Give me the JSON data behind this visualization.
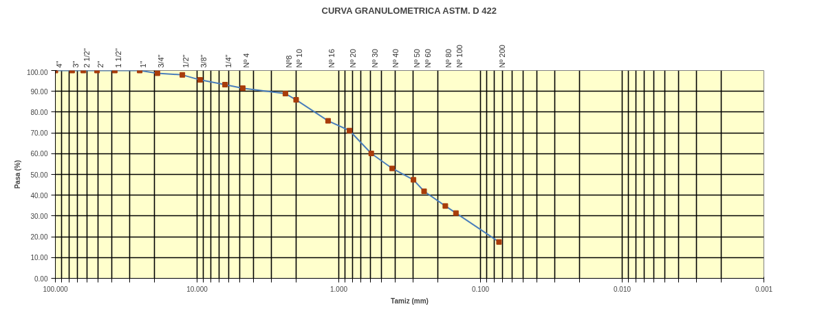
{
  "chart_data": {
    "type": "line",
    "title": "CURVA GRANULOMETRICA ASTM. D 422",
    "xlabel": "Tamiz (mm)",
    "ylabel": "Pasa (%)",
    "x": [
      100,
      76.2,
      63.5,
      50.8,
      38.1,
      25.4,
      19.05,
      12.7,
      9.525,
      6.35,
      4.76,
      2.38,
      2.0,
      1.19,
      0.84,
      0.59,
      0.42,
      0.297,
      0.25,
      0.177,
      0.149,
      0.074
    ],
    "series": [
      {
        "color": "#4a7ebb",
        "colors": [
          "#a83c0a",
          "#a83c0a",
          "#a83c0a",
          "#a83c0a",
          "#a83c0a",
          "#a83c0a",
          "#a83c0a",
          "#a83c0a",
          "#a83c0a",
          "#a83c0a",
          "#a83c0a",
          "#a83c0a",
          "#a83c0a",
          "#a83c0a",
          "#a83c0a",
          "#a83c0a",
          "#a83c0a",
          "#a83c0a",
          "#a83c0a",
          "#a83c0a",
          "#a83c0a",
          "#a83c0a"
        ],
        "values": [
          100,
          100,
          100,
          100,
          100,
          100,
          98.7,
          97.9,
          95.5,
          93.2,
          91.5,
          88.9,
          85.9,
          75.8,
          71.1,
          60.1,
          52.9,
          47.4,
          41.9,
          34.8,
          31.4,
          17.5
        ]
      }
    ],
    "marker": "square",
    "line_style": "solid",
    "log": "x",
    "grid": true,
    "xlim": [
      100,
      0.001
    ],
    "ylim": [
      0,
      100
    ],
    "xticks": [
      {
        "value": 100,
        "label": "100.000"
      },
      {
        "value": 90,
        "label": null
      },
      {
        "value": 80,
        "label": null
      },
      {
        "value": 70,
        "label": null
      },
      {
        "value": 60,
        "label": null
      },
      {
        "value": 50,
        "label": null
      },
      {
        "value": 40,
        "label": null
      },
      {
        "value": 30,
        "label": null
      },
      {
        "value": 20,
        "label": null
      },
      {
        "value": 10,
        "label": "10.000"
      },
      {
        "value": 9,
        "label": null
      },
      {
        "value": 8,
        "label": null
      },
      {
        "value": 7,
        "label": null
      },
      {
        "value": 6,
        "label": null
      },
      {
        "value": 5,
        "label": null
      },
      {
        "value": 4,
        "label": null
      },
      {
        "value": 3,
        "label": null
      },
      {
        "value": 2,
        "label": null
      },
      {
        "value": 1,
        "label": "1.000"
      },
      {
        "value": 0.9,
        "label": null
      },
      {
        "value": 0.8,
        "label": null
      },
      {
        "value": 0.7,
        "label": null
      },
      {
        "value": 0.6,
        "label": null
      },
      {
        "value": 0.5,
        "label": null
      },
      {
        "value": 0.4,
        "label": null
      },
      {
        "value": 0.3,
        "label": null
      },
      {
        "value": 0.2,
        "label": null
      },
      {
        "value": 0.1,
        "label": "0.100"
      },
      {
        "value": 0.09,
        "label": null
      },
      {
        "value": 0.08,
        "label": null
      },
      {
        "value": 0.07,
        "label": null
      },
      {
        "value": 0.06,
        "label": null
      },
      {
        "value": 0.05,
        "label": null
      },
      {
        "value": 0.04,
        "label": null
      },
      {
        "value": 0.03,
        "label": null
      },
      {
        "value": 0.02,
        "label": null
      },
      {
        "value": 0.01,
        "label": "0.010"
      },
      {
        "value": 0.009,
        "label": null
      },
      {
        "value": 0.008,
        "label": null
      },
      {
        "value": 0.007,
        "label": null
      },
      {
        "value": 0.006,
        "label": null
      },
      {
        "value": 0.005,
        "label": null
      },
      {
        "value": 0.004,
        "label": null
      },
      {
        "value": 0.003,
        "label": null
      },
      {
        "value": 0.002,
        "label": null
      },
      {
        "value": 0.001,
        "label": "0.001"
      }
    ],
    "yticks": [
      {
        "value": 0,
        "label": "0.00"
      },
      {
        "value": 10,
        "label": "10.00"
      },
      {
        "value": 20,
        "label": "20.00"
      },
      {
        "value": 30,
        "label": "30.00"
      },
      {
        "value": 40,
        "label": "40.00"
      },
      {
        "value": 50,
        "label": "50.00"
      },
      {
        "value": 60,
        "label": "60.00"
      },
      {
        "value": 70,
        "label": "70.00"
      },
      {
        "value": 80,
        "label": "80.00"
      },
      {
        "value": 90,
        "label": "90.00"
      },
      {
        "value": 100,
        "label": "100.00"
      }
    ],
    "annotations": [
      "4\"",
      "3\"",
      "2 1/2\"",
      "2\"",
      "1 1/2\"",
      "1\"",
      "3/4\"",
      "1/2\"",
      "3/8\"",
      "1/4\"",
      "Nº 4",
      "Nº8",
      "Nº 10",
      "Nº 16",
      "Nº 20",
      "Nº 30",
      "Nº 40",
      "Nº 50",
      "Nº 60",
      "Nº 80",
      "Nº 100",
      "Nº 200"
    ]
  }
}
